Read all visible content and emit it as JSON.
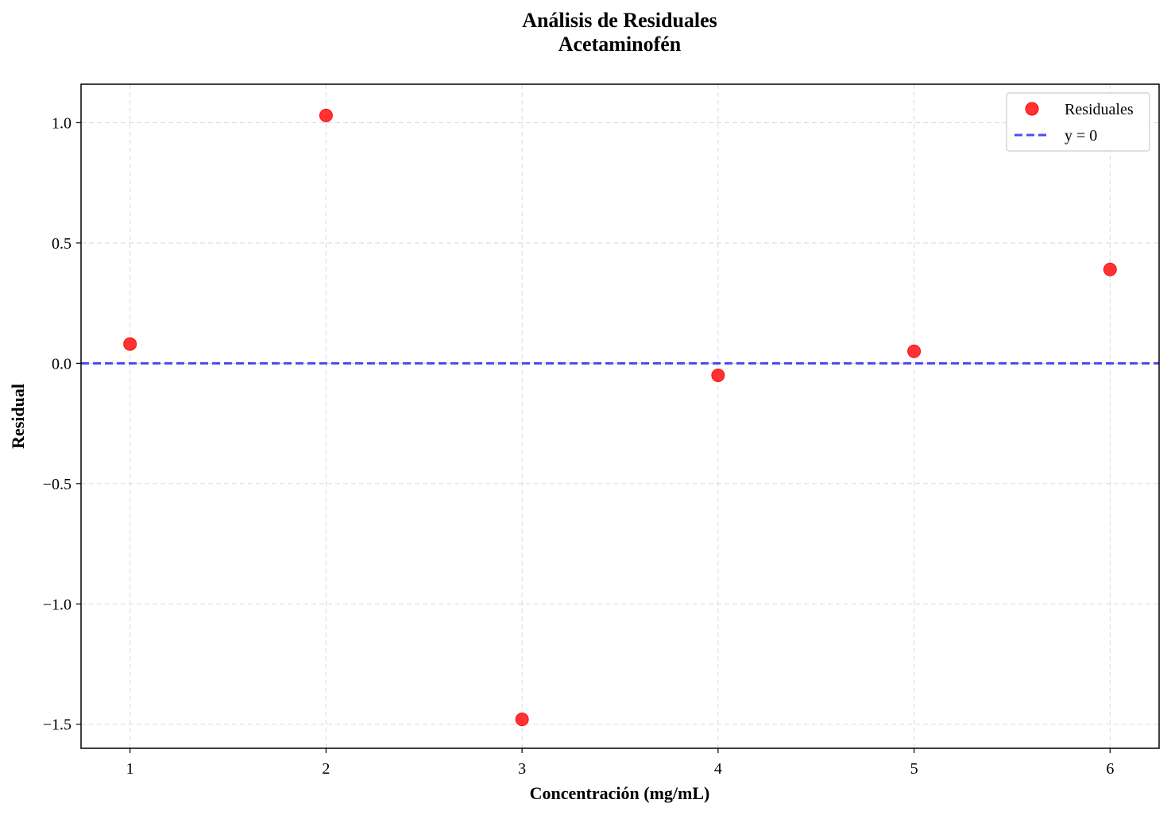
{
  "chart_data": {
    "type": "scatter",
    "title": "Análisis de Residuales",
    "subtitle": "Acetaminofén",
    "xlabel": "Concentración (mg/mL)",
    "ylabel": "Residual",
    "xlim": [
      0.75,
      6.25
    ],
    "ylim": [
      -1.6,
      1.16
    ],
    "xticks": [
      1,
      2,
      3,
      4,
      5,
      6
    ],
    "xtick_labels": [
      "1",
      "2",
      "3",
      "4",
      "5",
      "6"
    ],
    "yticks": [
      1.0,
      0.5,
      0.0,
      -0.5,
      -1.0,
      -1.5
    ],
    "ytick_labels": [
      "1.0",
      "0.5",
      "0.0",
      "−0.5",
      "−1.0",
      "−1.5"
    ],
    "grid": true,
    "legend_position": "top-right",
    "series": [
      {
        "name": "Residuales",
        "kind": "scatter",
        "color": "#ff0000",
        "x": [
          1,
          2,
          3,
          4,
          5,
          6
        ],
        "y": [
          0.08,
          1.03,
          -1.48,
          -0.05,
          0.05,
          0.39
        ]
      },
      {
        "name": "y = 0",
        "kind": "hline",
        "color": "#0000ee",
        "y": 0
      }
    ]
  }
}
